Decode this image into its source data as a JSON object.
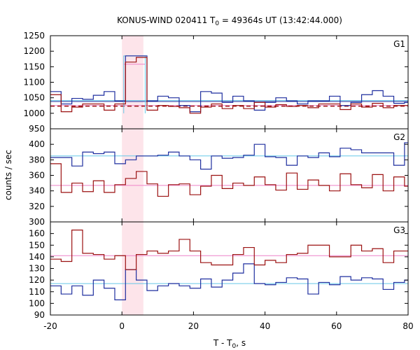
{
  "chart_data": {
    "type": "line",
    "title": "KONUS-WIND 020411 T",
    "title_sub": "0",
    "title_tail": " = 49364s UT (13:42:44.000)",
    "xlabel": "T - T",
    "xlabel_sub": "0",
    "xlabel_tail": ", s",
    "ylabel": "counts / sec",
    "xlim": [
      -20,
      80
    ],
    "x_ticks": [
      -20,
      0,
      20,
      40,
      60,
      80
    ],
    "highlight_x": [
      0,
      6
    ],
    "bin_edges": [
      -20,
      -17,
      -14,
      -11,
      -8,
      -5,
      -2,
      1,
      4,
      7,
      10,
      13,
      16,
      19,
      22,
      25,
      28,
      31,
      34,
      37,
      40,
      43,
      46,
      49,
      52,
      55,
      58,
      61,
      64,
      67,
      70,
      73,
      76,
      79,
      82
    ],
    "panels": [
      {
        "name": "G1",
        "ylim": [
          950,
          1250
        ],
        "y_ticks": [
          950,
          1000,
          1050,
          1100,
          1150,
          1200,
          1250
        ],
        "series": [
          {
            "color": "#1f2f9f",
            "values": [
              1070,
              1030,
              1048,
              1045,
              1058,
              1070,
              1040,
              1185,
              1185,
              1040,
              1055,
              1050,
              1025,
              1005,
              1070,
              1065,
              1035,
              1055,
              1040,
              1010,
              1035,
              1050,
              1040,
              1030,
              1040,
              1040,
              1055,
              1025,
              1035,
              1060,
              1073,
              1055,
              1032,
              1035
            ]
          },
          {
            "color": "#9b1111",
            "values": [
              1060,
              1005,
              1020,
              1030,
              1030,
              1010,
              1030,
              1165,
              1180,
              1010,
              1025,
              1022,
              1018,
              1000,
              1020,
              1030,
              1015,
              1025,
              1015,
              1035,
              1020,
              1028,
              1022,
              1025,
              1018,
              1030,
              1030,
              1012,
              1030,
              1020,
              1032,
              1018,
              1025,
              1025
            ]
          }
        ],
        "bg_lines": [
          {
            "color": "#1f2f9f",
            "value": 1038,
            "style": "solid"
          },
          {
            "color": "#66c8e8",
            "value": 1041,
            "style": "solid"
          },
          {
            "color": "#ee82c8",
            "value": 1025,
            "style": "solid"
          },
          {
            "color": "#9b1111",
            "value": 1023,
            "style": "dashed"
          }
        ],
        "box": {
          "x": [
            0.5,
            6.5
          ],
          "y": [
            1000,
            1185
          ],
          "color": "#66c8e8"
        },
        "box_level": {
          "value": 1158,
          "color": "#ee82c8"
        }
      },
      {
        "name": "G2",
        "ylim": [
          300,
          420
        ],
        "y_ticks": [
          300,
          320,
          340,
          360,
          380,
          400
        ],
        "series": [
          {
            "color": "#1f2f9f",
            "values": [
              383,
              383,
              372,
              390,
              388,
              390,
              375,
              380,
              385,
              385,
              386,
              390,
              385,
              380,
              368,
              385,
              382,
              383,
              386,
              400,
              384,
              383,
              373,
              385,
              383,
              389,
              384,
              395,
              393,
              389,
              389,
              389,
              373,
              402
            ]
          },
          {
            "color": "#9b1111",
            "values": [
              375,
              338,
              350,
              339,
              353,
              338,
              348,
              356,
              365,
              349,
              333,
              348,
              349,
              335,
              346,
              360,
              343,
              350,
              347,
              358,
              348,
              341,
              363,
              342,
              354,
              347,
              340,
              362,
              348,
              344,
              361,
              340,
              358,
              346
            ]
          }
        ],
        "bg_lines": [
          {
            "color": "#66c8e8",
            "value": 385,
            "style": "solid"
          },
          {
            "color": "#ee82c8",
            "value": 347,
            "style": "solid"
          }
        ]
      },
      {
        "name": "G3",
        "ylim": [
          90,
          170
        ],
        "y_ticks": [
          90,
          100,
          110,
          120,
          130,
          140,
          150,
          160
        ],
        "series": [
          {
            "color": "#1f2f9f",
            "values": [
              115,
              108,
              115,
              107,
              120,
              113,
              103,
              129,
              120,
              111,
              115,
              117,
              115,
              113,
              121,
              114,
              120,
              126,
              134,
              117,
              116,
              118,
              122,
              121,
              108,
              118,
              116,
              123,
              120,
              122,
              121,
              112,
              118,
              120
            ]
          },
          {
            "color": "#9b1111",
            "values": [
              138,
              136,
              163,
              143,
              142,
              138,
              141,
              129,
              142,
              145,
              143,
              145,
              155,
              145,
              135,
              133,
              133,
              142,
              148,
              133,
              137,
              135,
              142,
              143,
              150,
              150,
              140,
              140,
              150,
              145,
              147,
              135,
              145,
              145
            ]
          }
        ],
        "bg_lines": [
          {
            "color": "#66c8e8",
            "value": 117,
            "style": "solid"
          },
          {
            "color": "#ee82c8",
            "value": 141,
            "style": "solid"
          }
        ]
      }
    ]
  }
}
